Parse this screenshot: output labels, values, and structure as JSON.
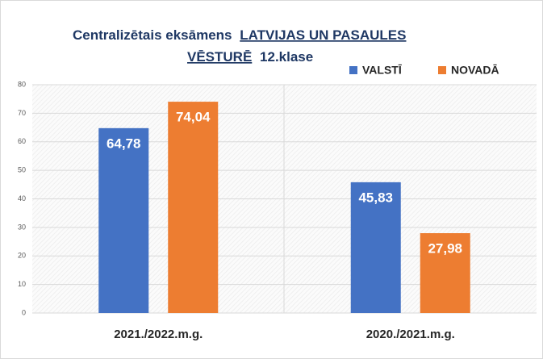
{
  "chart_data": {
    "type": "bar",
    "title": [
      "Centralizētais eksāmens",
      "LATVIJAS UN PASAULES",
      "VĒSTURĒ",
      "12.klase"
    ],
    "categories": [
      "2021./2022.m.g.",
      "2020./2021.m.g."
    ],
    "series": [
      {
        "name": "VALSTĪ",
        "color": "#4472c4",
        "values": [
          64.78,
          45.83
        ],
        "value_labels": [
          "64,78",
          "45,83"
        ]
      },
      {
        "name": "NOVADĀ",
        "color": "#ed7d31",
        "values": [
          74.04,
          27.98
        ],
        "value_labels": [
          "74,04",
          "27,98"
        ]
      }
    ],
    "ylim": [
      0,
      80
    ],
    "yticks": [
      0,
      10,
      20,
      30,
      40,
      50,
      60,
      70,
      80
    ],
    "grid": true,
    "legend": "top-right"
  }
}
